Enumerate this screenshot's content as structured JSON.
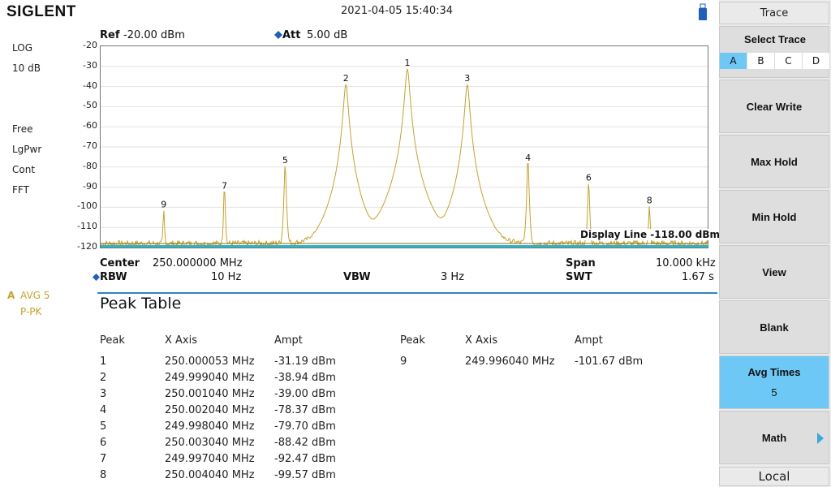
{
  "header": {
    "logo": "SIGLENT",
    "datetime": "2021-04-05   15:40:34"
  },
  "left_panel": {
    "scale_type": "LOG",
    "scale_div": "10 dB",
    "trigger": "Free",
    "detector": "LgPwr",
    "sweep": "Cont",
    "mode": "FFT",
    "trace_letter": "A",
    "trace_avg": "AVG 5",
    "trace_det": "P-PK"
  },
  "top": {
    "ref_label": "Ref",
    "ref_value": "-20.00 dBm",
    "att_label": "Att",
    "att_value": "5.00 dB"
  },
  "display_line": "Display Line -118.00 dBm",
  "bottom": {
    "center_label": "Center",
    "center_value": "250.000000 MHz",
    "span_label": "Span",
    "span_value": "10.000 kHz",
    "rbw_label": "RBW",
    "rbw_value": "10 Hz",
    "vbw_label": "VBW",
    "vbw_value": "3 Hz",
    "swt_label": "SWT",
    "swt_value": "1.67 s"
  },
  "peak_table": {
    "title": "Peak Table",
    "headers": [
      "Peak",
      "X Axis",
      "Ampt"
    ],
    "rows": [
      [
        "1",
        "250.000053 MHz",
        "-31.19 dBm"
      ],
      [
        "2",
        "249.999040 MHz",
        "-38.94 dBm"
      ],
      [
        "3",
        "250.001040 MHz",
        "-39.00 dBm"
      ],
      [
        "4",
        "250.002040 MHz",
        "-78.37 dBm"
      ],
      [
        "5",
        "249.998040 MHz",
        "-79.70 dBm"
      ],
      [
        "6",
        "250.003040 MHz",
        "-88.42 dBm"
      ],
      [
        "7",
        "249.997040 MHz",
        "-92.47 dBm"
      ],
      [
        "8",
        "250.004040 MHz",
        "-99.57 dBm"
      ],
      [
        "9",
        "249.996040 MHz",
        "-101.67 dBm"
      ]
    ]
  },
  "menu": {
    "title": "Trace",
    "select_trace": "Select Trace",
    "trace_tabs": [
      "A",
      "B",
      "C",
      "D"
    ],
    "selected_trace": "A",
    "clear_write": "Clear Write",
    "max_hold": "Max Hold",
    "min_hold": "Min Hold",
    "view": "View",
    "blank": "Blank",
    "avg_times": "Avg Times",
    "avg_times_value": "5",
    "math": "Math",
    "local": "Local"
  },
  "chart_data": {
    "type": "line",
    "ylabel": "",
    "xlabel": "",
    "y_ticks": [
      -20,
      -30,
      -40,
      -50,
      -60,
      -70,
      -80,
      -90,
      -100,
      -110,
      -120
    ],
    "ylim": [
      -120,
      -20
    ],
    "xlim": [
      249.995,
      250.005
    ],
    "x_unit": "MHz",
    "y_unit": "dBm",
    "noise_floor": -118,
    "display_line_dbm": -118,
    "trace_color": "#c9a227",
    "peaks": [
      {
        "label": "1",
        "x": 250.000053,
        "y": -31.19
      },
      {
        "label": "2",
        "x": 249.99904,
        "y": -38.94
      },
      {
        "label": "3",
        "x": 250.00104,
        "y": -39.0
      },
      {
        "label": "4",
        "x": 250.00204,
        "y": -78.37
      },
      {
        "label": "5",
        "x": 249.99804,
        "y": -79.7
      },
      {
        "label": "6",
        "x": 250.00304,
        "y": -88.42
      },
      {
        "label": "7",
        "x": 249.99704,
        "y": -92.47
      },
      {
        "label": "8",
        "x": 250.00404,
        "y": -99.57
      },
      {
        "label": "9",
        "x": 249.99604,
        "y": -101.67
      }
    ]
  }
}
